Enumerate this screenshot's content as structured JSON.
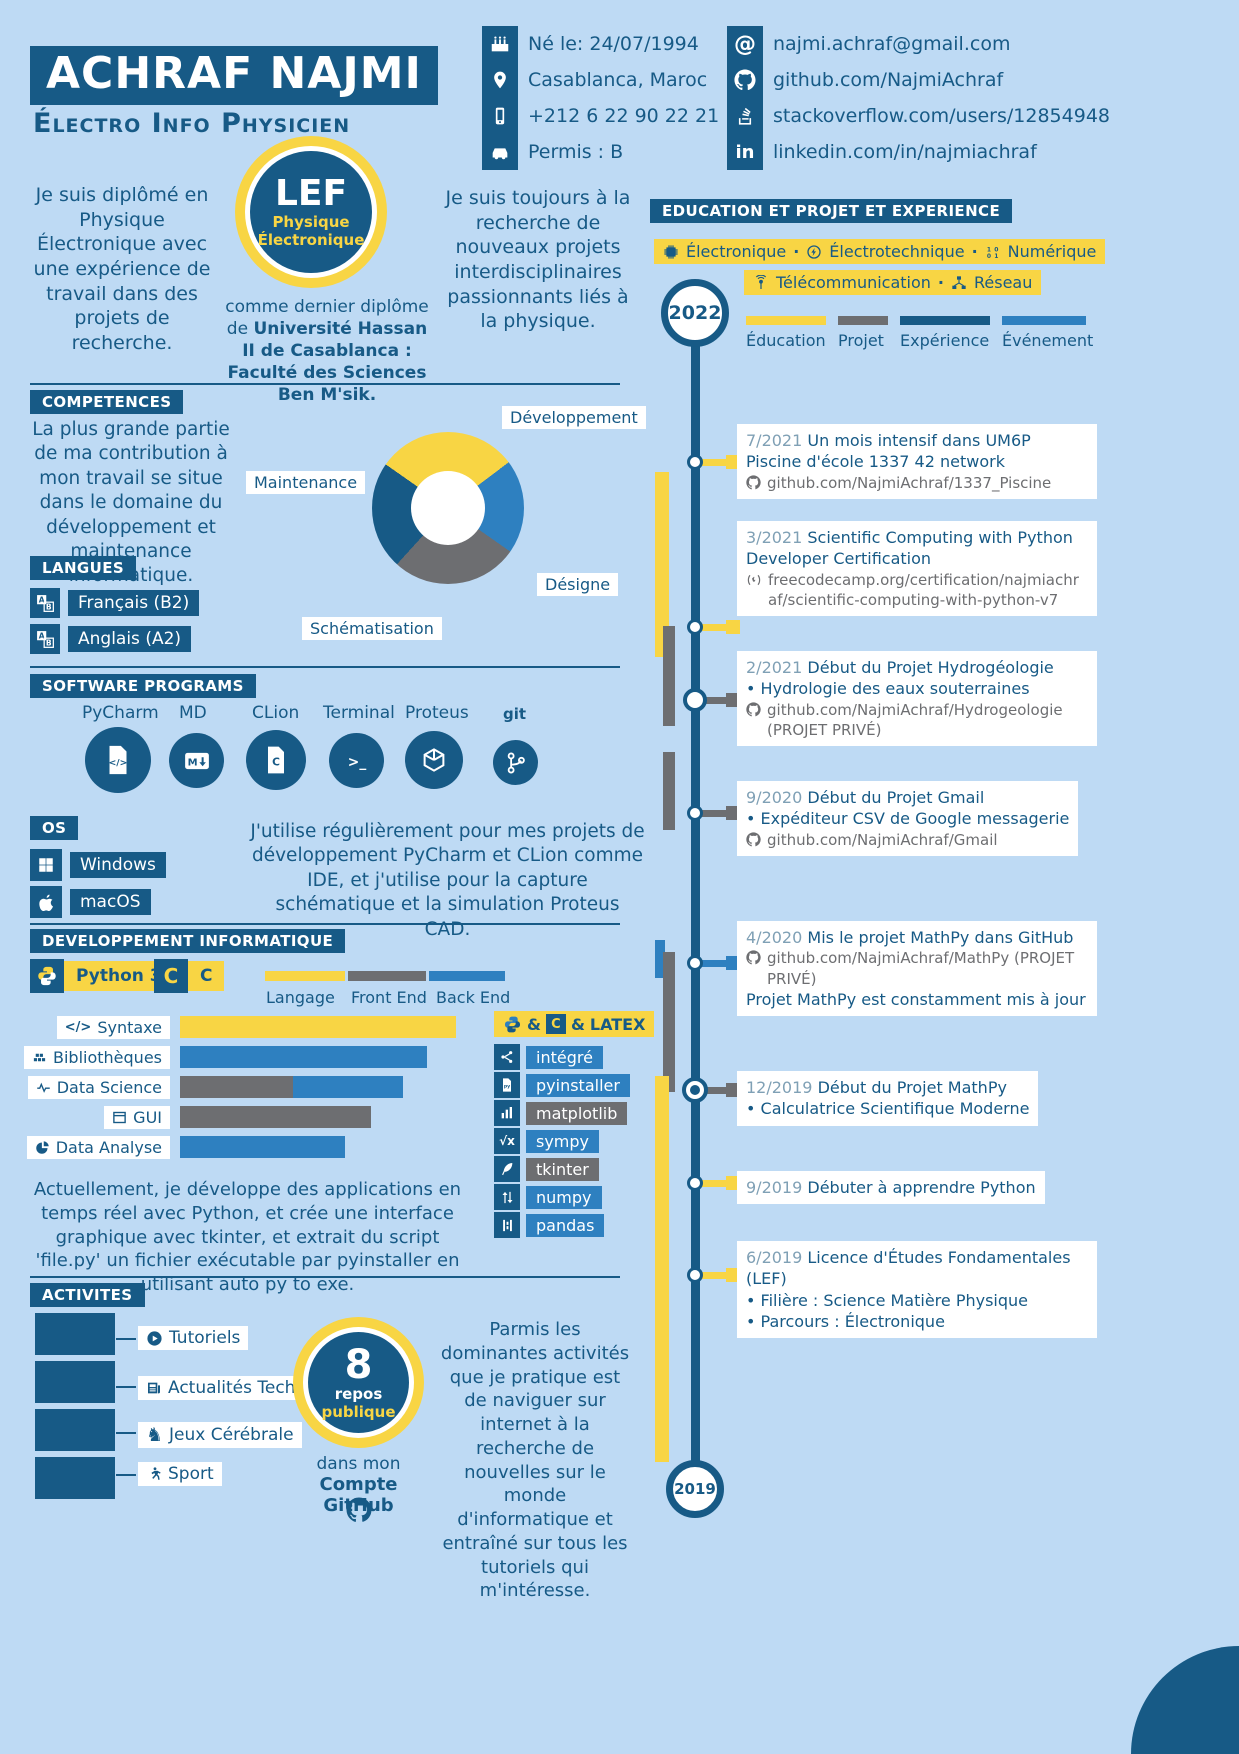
{
  "palette": {
    "background": "#bedaf4",
    "dark_blue": "#175a86",
    "yellow": "#f8d544",
    "blue": "#2e80c0",
    "gray": "#6d6e71",
    "date_blue": "#7fa0b5"
  },
  "header": {
    "name": "ACHRAF NAJMI",
    "title": "Électro Info Physicien"
  },
  "personal": [
    {
      "icon": "birthday-cake-icon",
      "text": "Né le: 24/07/1994"
    },
    {
      "icon": "location-pin-icon",
      "text": "Casablanca, Maroc"
    },
    {
      "icon": "mobile-phone-icon",
      "text": "+212 6 22 90 22 21"
    },
    {
      "icon": "car-icon",
      "text": "Permis : B"
    }
  ],
  "links": [
    {
      "icon": "at-sign-icon",
      "text": "najmi.achraf@gmail.com"
    },
    {
      "icon": "github-icon",
      "text": "github.com/NajmiAchraf"
    },
    {
      "icon": "stackoverflow-icon",
      "text": "stackoverflow.com/users/12854948"
    },
    {
      "icon": "linkedin-icon",
      "text": "linkedin.com/in/najmiachraf"
    }
  ],
  "profile": {
    "intro": "Je suis diplômé en Physique Électronique avec une expérience de travail dans des projets de recherche.",
    "badge": {
      "acronym": "LEF",
      "line1": "Physique",
      "line2": "Électronique"
    },
    "diploma_prefix": "comme dernier diplôme de",
    "diploma": "Université Hassan II de Casablanca : Faculté des Sciences Ben M'sik.",
    "seeking": "Je suis toujours à la recherche de nouveaux projets interdisciplinaires passionnants liés à la physique."
  },
  "competences": {
    "heading": "COMPETENCES",
    "text": "La plus grande partie de ma contribution à mon travail se situe dans le domaine du développement et maintenance informatique."
  },
  "langues": {
    "heading": "LANGUES",
    "items": [
      "Français (B2)",
      "Anglais (A2)"
    ]
  },
  "software": {
    "heading": "SOFTWARE PROGRAMS",
    "programs": [
      "PyCharm",
      "MD",
      "CLion",
      "Terminal",
      "Proteus",
      "git"
    ]
  },
  "os": {
    "heading": "OS",
    "items": [
      "Windows",
      "macOS"
    ],
    "text": "J'utilise régulièrement pour mes projets de développement PyCharm et CLion comme IDE, et j'utilise pour la capture schématique et la simulation Proteus CAD."
  },
  "dev": {
    "heading": "DEVELOPPEMENT INFORMATIQUE",
    "badges": [
      "Python 3",
      "C"
    ],
    "libs_title": {
      "amp": "&",
      "c": "C",
      "latex": "LATEX"
    },
    "libs": [
      {
        "icon": "share-icon",
        "label": "intégré",
        "color": "blue"
      },
      {
        "icon": "python-file-icon",
        "label": "pyinstaller",
        "color": "blue"
      },
      {
        "icon": "bar-chart-icon",
        "label": "matplotlib",
        "color": "gray"
      },
      {
        "icon": "square-root-icon",
        "label": "sympy",
        "color": "blue"
      },
      {
        "icon": "feather-icon",
        "label": "tkinter",
        "color": "gray"
      },
      {
        "icon": "sort-arrows-icon",
        "label": "numpy",
        "color": "blue"
      },
      {
        "icon": "table-icon",
        "label": "pandas",
        "color": "blue"
      }
    ],
    "text": "Actuellement, je développe des applications en temps réel avec Python, et crée une interface graphique avec tkinter, et extrait du script 'file.py' un fichier exécutable par pyinstaller en utilisant auto py to exe."
  },
  "activites": {
    "heading": "ACTIVITES",
    "items": [
      {
        "icon": "play-icon",
        "label": "Tutoriels"
      },
      {
        "icon": "news-icon",
        "label": "Actualités Tech"
      },
      {
        "icon": "chess-knight-icon",
        "label": "Jeux Cérébrale"
      },
      {
        "icon": "runner-icon",
        "label": "Sport"
      }
    ],
    "badge": {
      "number": "8",
      "line1": "repos",
      "line2": "publique"
    },
    "github_prefix": "dans mon",
    "github_account": "Compte GitHub",
    "text": "Parmis les dominantes activités que je pratique est de naviguer sur internet à la recherche de nouvelles sur le monde d'informatique et entraîné sur tous les tutoriels qui m'intéresse."
  },
  "timeline": {
    "heading": "EDUCATION ET PROJET ET EXPERIENCE",
    "separator": "·",
    "tags_row1": [
      {
        "icon": "chip-icon",
        "label": "Électronique"
      },
      {
        "icon": "motor-icon",
        "label": "Électrotechnique"
      },
      {
        "icon": "binary-icon",
        "label": "Numérique"
      }
    ],
    "tags_row2": [
      {
        "icon": "antenna-icon",
        "label": "Télécommunication"
      },
      {
        "icon": "network-icon",
        "label": "Réseau"
      }
    ],
    "start_year": "2022",
    "end_year": "2019",
    "legend": [
      {
        "label": "Éducation",
        "color": "#f8d544"
      },
      {
        "label": "Projet",
        "color": "#6d6e71"
      },
      {
        "label": "Expérience",
        "color": "#175a86"
      },
      {
        "label": "Événement",
        "color": "#2e80c0"
      }
    ],
    "events": [
      {
        "date": "7/2021",
        "title": "Un mois intensif dans UM6P Piscine d'école 1337 42 network",
        "link": "github.com/NajmiAchraf/1337_Piscine",
        "link_icon": "github-icon",
        "type": "education"
      },
      {
        "date": "3/2021",
        "title": "Scientific Computing with Python Developer Certification",
        "link": "freecodecamp.org/certification/najmiachraf/scientific-computing-with-python-v7",
        "link_icon": "freecodecamp-icon",
        "type": "education"
      },
      {
        "date": "2/2021",
        "title": "Début du Projet Hydrogéologie",
        "bullets": [
          "Hydrologie des eaux souterraines"
        ],
        "link": "github.com/NajmiAchraf/Hydrogeologie (PROJET PRIVÉ)",
        "link_icon": "github-icon",
        "type": "projet"
      },
      {
        "date": "9/2020",
        "title": "Début du Projet Gmail",
        "bullets": [
          "Expéditeur CSV de Google messagerie"
        ],
        "link": "github.com/NajmiAchraf/Gmail",
        "link_icon": "github-icon",
        "type": "projet"
      },
      {
        "date": "4/2020",
        "title": "Mis le projet MathPy dans GitHub",
        "link": "github.com/NajmiAchraf/MathPy (PROJET PRIVÉ)",
        "link_icon": "github-icon",
        "extra": "Projet MathPy est constamment mis à jour",
        "type": "evenement"
      },
      {
        "date": "12/2019",
        "title": "Début du Projet MathPy",
        "bullets": [
          "Calculatrice Scientifique Moderne"
        ],
        "type": "projet"
      },
      {
        "date": "9/2019",
        "title": "Débuter à apprendre Python",
        "type": "education"
      },
      {
        "date": "6/2019",
        "title": "Licence d'Études Fondamentales (LEF)",
        "bullets": [
          "Filière : Science Matière Physique",
          "Parcours : Électronique"
        ],
        "type": "education"
      }
    ]
  },
  "chart_data": [
    {
      "type": "pie",
      "title": "Competences",
      "donut": true,
      "labels": [
        "Développement",
        "Désigne",
        "Schématisation",
        "Maintenance"
      ],
      "values": [
        30,
        20,
        27,
        23
      ],
      "colors": [
        "#f8d544",
        "#2e80c0",
        "#6d6e71",
        "#175a86"
      ],
      "start_angle_deg": -55
    },
    {
      "type": "bar",
      "title": "Developpement Informatique",
      "orientation": "horizontal",
      "categories": [
        "Syntaxe",
        "Bibliothèques",
        "Data Science",
        "GUI",
        "Data Analyse"
      ],
      "series": [
        {
          "name": "Langage",
          "color": "#f8d544",
          "values": [
            95,
            0,
            0,
            0,
            0
          ]
        },
        {
          "name": "Front End",
          "color": "#6d6e71",
          "values": [
            0,
            0,
            39,
            66,
            0
          ]
        },
        {
          "name": "Back End",
          "color": "#2e80c0",
          "values": [
            0,
            85,
            38,
            0,
            57
          ]
        }
      ],
      "xlim": [
        0,
        100
      ]
    }
  ]
}
